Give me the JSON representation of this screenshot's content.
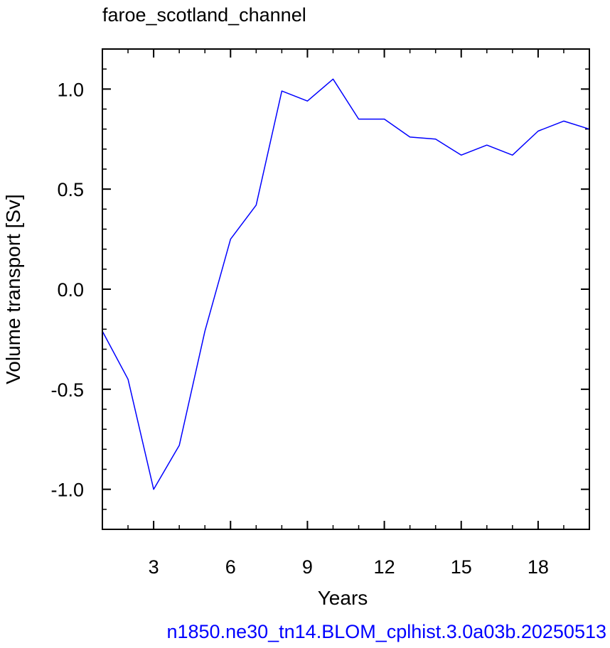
{
  "chart_data": {
    "type": "line",
    "title": "faroe_scotland_channel",
    "xlabel": "Years",
    "ylabel": "Volume transport [Sv]",
    "footer": "n1850.ne30_tn14.BLOM_cplhist.3.0a03b.20250513",
    "xlim": [
      1,
      20
    ],
    "ylim": [
      -1.2,
      1.2
    ],
    "x_ticks": [
      3,
      6,
      9,
      12,
      15,
      18
    ],
    "x_tick_labels": [
      "3",
      "6",
      "9",
      "12",
      "15",
      "18"
    ],
    "y_ticks": [
      -1.0,
      -0.5,
      0.0,
      0.5,
      1.0
    ],
    "y_tick_labels": [
      "-1.0",
      "-0.5",
      "0.0",
      "0.5",
      "1.0"
    ],
    "grid": false,
    "series": [
      {
        "color": "#0000ff",
        "x": [
          1,
          2,
          3,
          4,
          5,
          6,
          7,
          8,
          9,
          10,
          11,
          12,
          13,
          14,
          15,
          16,
          17,
          18,
          19,
          20
        ],
        "y": [
          -0.21,
          -0.45,
          -1.0,
          -0.78,
          -0.21,
          0.25,
          0.42,
          0.99,
          0.94,
          1.05,
          0.85,
          0.85,
          0.76,
          0.75,
          0.67,
          0.72,
          0.67,
          0.79,
          0.84,
          0.8
        ]
      }
    ],
    "colors": {
      "line": "#0000ff",
      "footer": "#0000ff",
      "axes": "#000000"
    }
  }
}
